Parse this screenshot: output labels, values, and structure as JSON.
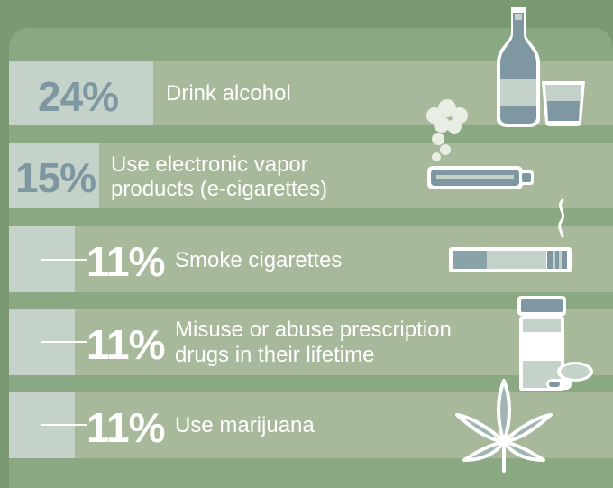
{
  "chart_data": {
    "type": "bar",
    "title": "",
    "categories": [
      "Drink alcohol",
      "Use electronic vapor products (e-cigarettes)",
      "Smoke cigarettes",
      "Misuse or abuse prescription drugs in their lifetime",
      "Use marijuana"
    ],
    "values": [
      24,
      15,
      11,
      11,
      11
    ],
    "unit": "%",
    "rows": [
      {
        "value_label": "24%",
        "label_lines": [
          "Drink alcohol"
        ],
        "icon": "alcohol-bottle-glass-icon"
      },
      {
        "value_label": "15%",
        "label_lines": [
          "Use electronic vapor",
          "products (e-cigarettes)"
        ],
        "icon": "e-cigarette-icon"
      },
      {
        "value_label": "11%",
        "label_lines": [
          "Smoke cigarettes"
        ],
        "icon": "cigarette-icon"
      },
      {
        "value_label": "11%",
        "label_lines": [
          "Misuse or abuse prescription",
          "drugs in their lifetime"
        ],
        "icon": "pill-bottle-icon"
      },
      {
        "value_label": "11%",
        "label_lines": [
          "Use marijuana"
        ],
        "icon": "marijuana-leaf-icon"
      }
    ]
  },
  "colors": {
    "background": "#7b9a73",
    "panel": "#8aa881",
    "row": "#a7b99a",
    "value_box": "#c4d2ca",
    "value_text": "#7f97a0",
    "label_text": "#ffffff"
  }
}
